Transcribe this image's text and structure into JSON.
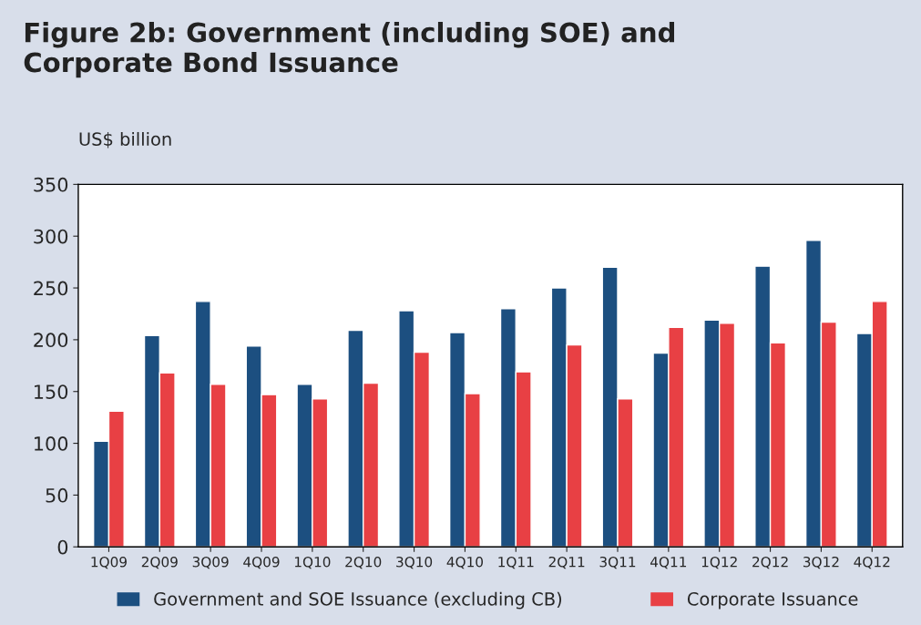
{
  "chart_data": {
    "type": "bar",
    "title": "Figure 2b: Government (including SOE) and\nCorporate Bond Issuance",
    "ylabel": "US$ billion",
    "categories": [
      "1Q09",
      "2Q09",
      "3Q09",
      "4Q09",
      "1Q10",
      "2Q10",
      "3Q10",
      "4Q10",
      "1Q11",
      "2Q11",
      "3Q11",
      "4Q11",
      "1Q12",
      "2Q12",
      "3Q12",
      "4Q12"
    ],
    "series": [
      {
        "name": "Government and SOE Issuance (excluding CB)",
        "color": "#1c4f80",
        "values": [
          102,
          204,
          237,
          194,
          157,
          209,
          228,
          207,
          230,
          250,
          270,
          187,
          219,
          271,
          296,
          206
        ]
      },
      {
        "name": "Corporate Issuance",
        "color": "#e84044",
        "values": [
          131,
          168,
          157,
          147,
          143,
          158,
          188,
          148,
          169,
          195,
          143,
          212,
          216,
          197,
          217,
          237
        ]
      }
    ],
    "ylim": [
      0,
      350
    ],
    "yticks": [
      0,
      50,
      100,
      150,
      200,
      250,
      300,
      350
    ],
    "grid": false,
    "legend": "bottom"
  }
}
